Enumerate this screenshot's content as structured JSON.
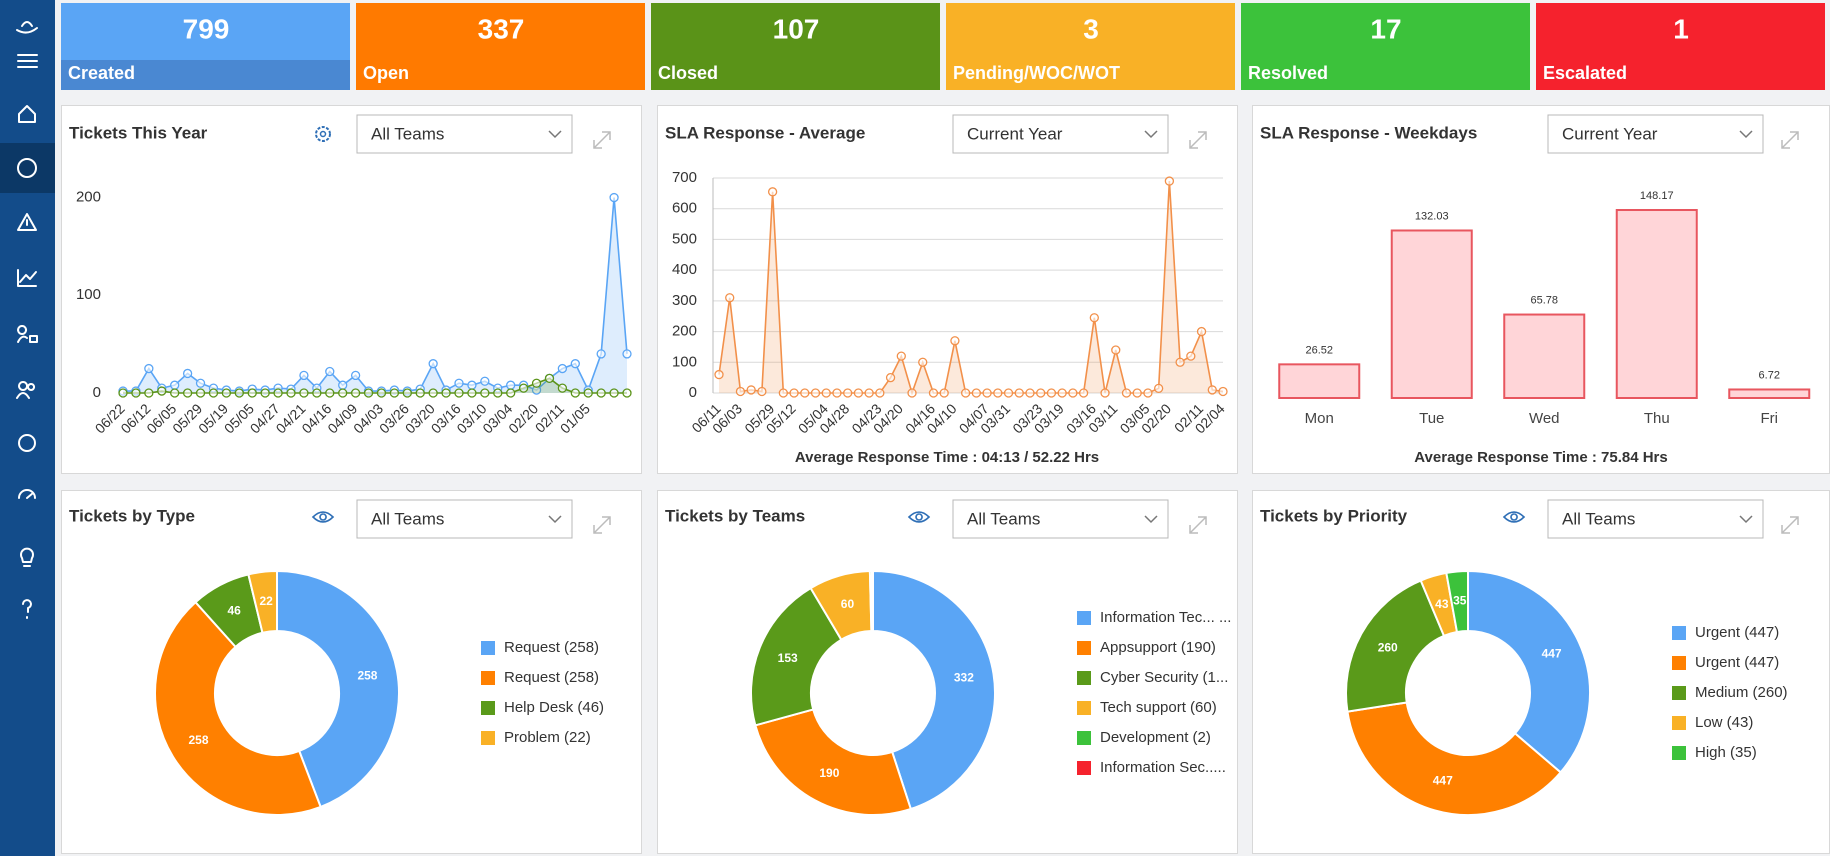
{
  "cards": [
    {
      "value": 799,
      "label": "Created",
      "color": "#5aa5f5",
      "strip": "#4a88d2"
    },
    {
      "value": 337,
      "label": "Open",
      "color": "#ff7a00"
    },
    {
      "value": 107,
      "label": "Closed",
      "color": "#5a9318"
    },
    {
      "value": 3,
      "label": "Pending/WOC/WOT",
      "color": "#f9b126"
    },
    {
      "value": 17,
      "label": "Resolved",
      "color": "#3cc23b"
    },
    {
      "value": 1,
      "label": "Escalated",
      "color": "#f5222d"
    }
  ],
  "panels": [
    {
      "title": "Tickets This Year",
      "filter": "All Teams",
      "chart": {
        "type": "line",
        "categories": [
          "06/22",
          null,
          "06/12",
          null,
          "06/05",
          null,
          "05/29",
          null,
          "05/19",
          null,
          "05/05",
          null,
          "04/27",
          null,
          "04/21",
          null,
          "04/16",
          null,
          "04/09",
          null,
          "04/03",
          null,
          "03/26",
          null,
          "03/20",
          null,
          "03/16",
          null,
          "03/10",
          null,
          "03/04",
          null,
          "02/20",
          null,
          "02/11",
          null,
          "01/05",
          null,
          null,
          null
        ],
        "series": [
          {
            "color": "#5aa5f5",
            "values": [
              2,
              2,
              25,
              5,
              8,
              20,
              10,
              5,
              3,
              2,
              4,
              3,
              5,
              4,
              18,
              5,
              22,
              8,
              18,
              2,
              2,
              3,
              2,
              4,
              30,
              3,
              10,
              8,
              12,
              5,
              8,
              8,
              3,
              15,
              25,
              30,
              3,
              40,
              200,
              40
            ]
          },
          {
            "color": "#5a9318",
            "values": [
              0,
              0,
              0,
              2,
              0,
              0,
              0,
              0,
              0,
              0,
              0,
              0,
              0,
              0,
              0,
              0,
              0,
              0,
              0,
              0,
              0,
              0,
              0,
              0,
              0,
              0,
              0,
              0,
              0,
              0,
              0,
              5,
              10,
              15,
              5,
              0,
              0,
              0,
              0,
              0
            ]
          }
        ],
        "ylim": [
          0,
          220
        ],
        "yticks": [
          0,
          100,
          200
        ],
        "grid": false
      }
    },
    {
      "title": "SLA Response - Average",
      "filter": "Current Year",
      "chart": {
        "type": "line",
        "categories": [
          "06/11",
          null,
          "06/03",
          null,
          null,
          "05/29",
          null,
          "05/12",
          null,
          null,
          "05/04",
          null,
          "04/28",
          null,
          null,
          "04/23",
          null,
          "04/20",
          null,
          null,
          "04/16",
          null,
          "04/10",
          null,
          null,
          "04/07",
          null,
          "03/31",
          null,
          null,
          "03/23",
          null,
          "03/19",
          null,
          null,
          "03/16",
          null,
          "03/11",
          null,
          null,
          "03/05",
          null,
          "02/20",
          null,
          null,
          "02/11",
          null,
          "02/04"
        ],
        "series": [
          {
            "color": "#f2904a",
            "values": [
              60,
              310,
              5,
              10,
              5,
              655,
              0,
              0,
              0,
              0,
              0,
              0,
              0,
              0,
              0,
              0,
              50,
              120,
              0,
              100,
              0,
              0,
              170,
              0,
              0,
              0,
              0,
              0,
              0,
              0,
              0,
              0,
              0,
              0,
              0,
              245,
              0,
              140,
              0,
              0,
              0,
              15,
              690,
              100,
              120,
              200,
              10,
              5
            ]
          }
        ],
        "ylim": [
          0,
          700
        ],
        "yticks": [
          0,
          100,
          200,
          300,
          400,
          500,
          600,
          700
        ],
        "grid": true,
        "footer": "Average Response Time : 04:13 / 52.22 Hrs"
      }
    },
    {
      "title": "SLA Response - Weekdays",
      "filter": "Current Year",
      "chart": {
        "type": "bar",
        "categories": [
          "Mon",
          "Tue",
          "Wed",
          "Thu",
          "Fri"
        ],
        "values": [
          26.52,
          132.03,
          65.78,
          148.17,
          6.72
        ],
        "color": "#ffd5d8",
        "stroke": "#e8565f",
        "ylim": [
          0,
          160
        ],
        "footer": "Average Response Time : 75.84 Hrs"
      }
    },
    {
      "title": "Tickets by Type",
      "filter": "All Teams",
      "chart": {
        "type": "donut",
        "labels": [
          "Request (258)",
          "Request (258)",
          "Help Desk (46)",
          "Problem (22)"
        ],
        "values": [
          258,
          258,
          46,
          22
        ],
        "colors": [
          "#5aa5f5",
          "#ff8000",
          "#5a9a1a",
          "#f9b126"
        ]
      }
    },
    {
      "title": "Tickets by Teams",
      "filter": "All Teams",
      "chart": {
        "type": "donut",
        "labels": [
          "Information Tec... ...",
          "Appsupport (190)",
          "Cyber Security (1...",
          "Tech support (60)",
          "Development (2)",
          "Information Sec....."
        ],
        "values": [
          332,
          190,
          153,
          60,
          2,
          1
        ],
        "colors": [
          "#5aa5f5",
          "#ff8000",
          "#5a9a1a",
          "#f9b126",
          "#3cc23b",
          "#f5222d"
        ]
      }
    },
    {
      "title": "Tickets by Priority",
      "filter": "All Teams",
      "chart": {
        "type": "donut",
        "labels": [
          "Urgent (447)",
          "Urgent (447)",
          "Medium (260)",
          "Low (43)",
          "High (35)"
        ],
        "values": [
          447,
          447,
          260,
          43,
          35
        ],
        "colors": [
          "#5aa5f5",
          "#ff8000",
          "#5a9a1a",
          "#f9b126",
          "#3cc23b"
        ]
      }
    }
  ]
}
